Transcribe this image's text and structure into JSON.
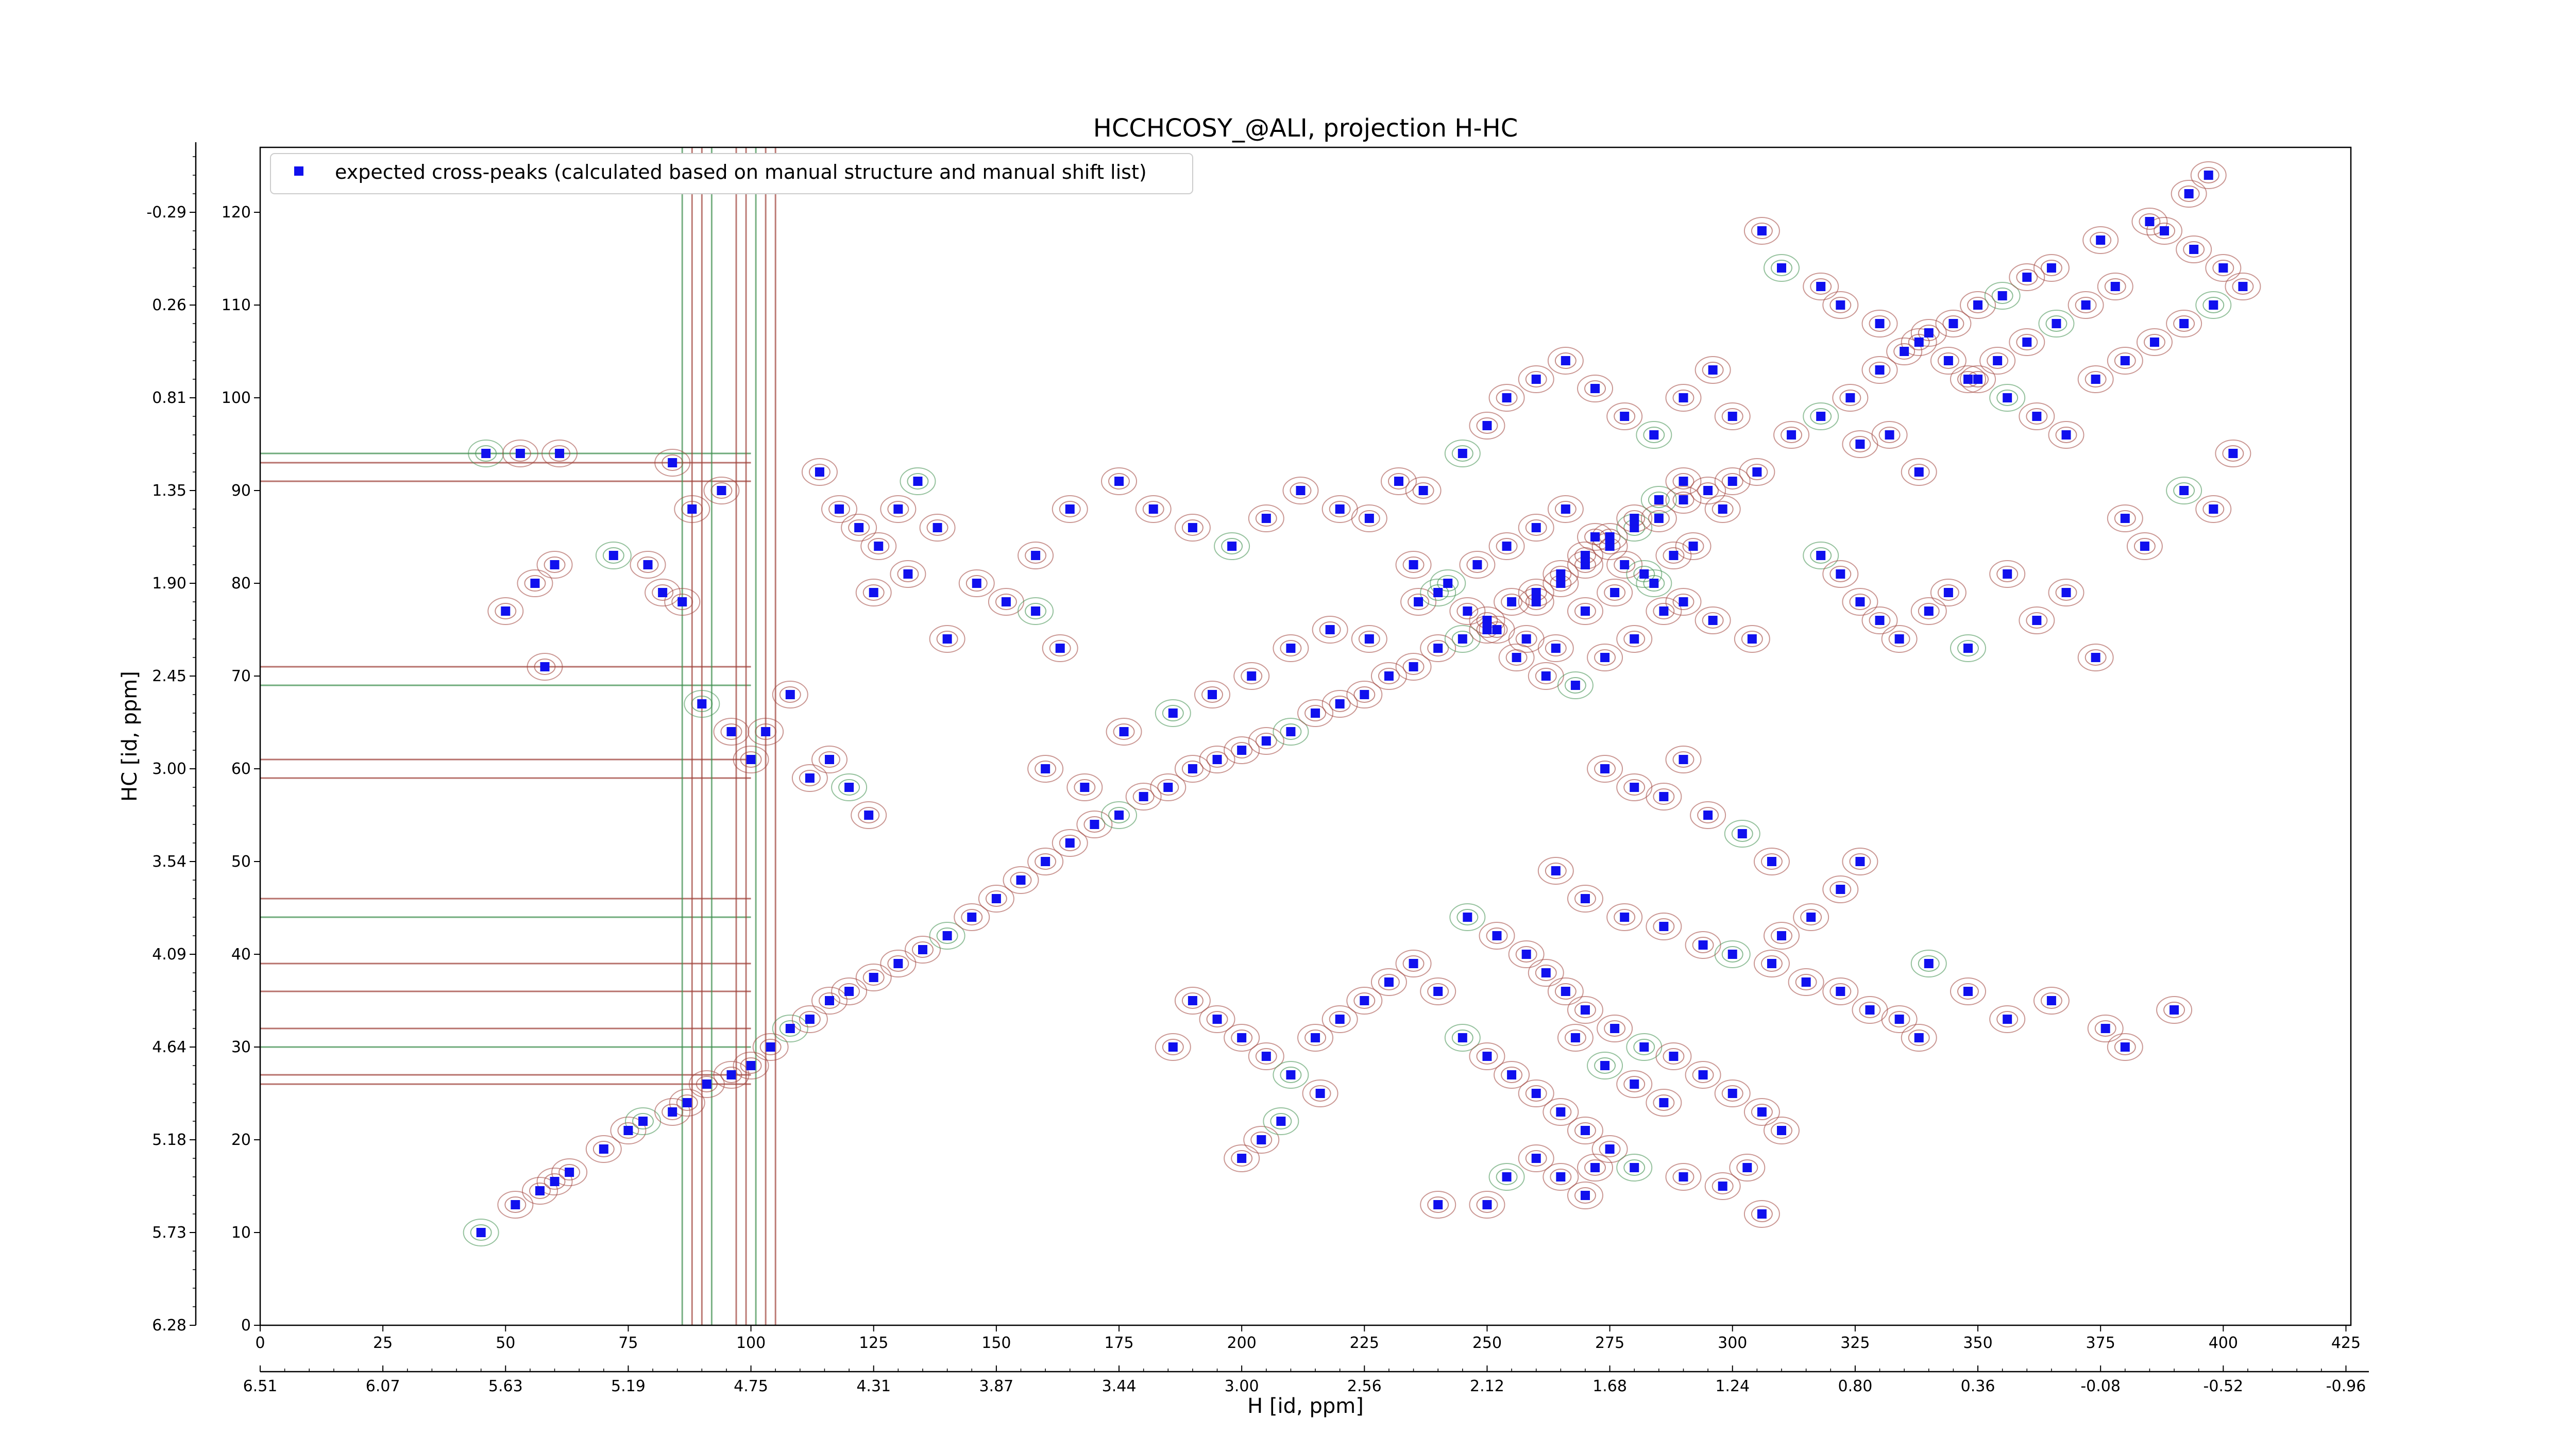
{
  "chart_data": {
    "type": "scatter",
    "title": "HCCHCOSY_@ALI, projection H-HC",
    "xlabel": "H [id, ppm]",
    "ylabel": "HC [id, ppm]",
    "x_index_range": [
      0,
      426
    ],
    "y_index_range": [
      0,
      127
    ],
    "x_index_ticks": [
      "0",
      "25",
      "50",
      "75",
      "100",
      "125",
      "150",
      "175",
      "200",
      "225",
      "250",
      "275",
      "300",
      "325",
      "350",
      "375",
      "400",
      "425"
    ],
    "x_ppm_ticks": [
      "6.51",
      "6.07",
      "5.63",
      "5.19",
      "4.75",
      "4.31",
      "3.87",
      "3.44",
      "3.00",
      "2.56",
      "2.12",
      "1.68",
      "1.24",
      "0.80",
      "0.36",
      "-0.08",
      "-0.52",
      "-0.96"
    ],
    "y_index_ticks": [
      "0",
      "10",
      "20",
      "30",
      "40",
      "50",
      "60",
      "70",
      "80",
      "90",
      "100",
      "110",
      "120"
    ],
    "y_ppm_ticks": [
      "6.28",
      "5.73",
      "5.18",
      "4.64",
      "4.09",
      "3.54",
      "3.00",
      "2.45",
      "1.90",
      "1.35",
      "0.81",
      "0.26",
      "-0.29"
    ],
    "grid": false,
    "legend_position": "top-left",
    "marker_color": "#1010ee",
    "contour_colors": [
      "#a0443c",
      "#3f8f4f"
    ],
    "series": [
      {
        "name": "expected cross-peaks (calculated based on manual structure and manual shift list)",
        "points": [
          [
            45,
            10
          ],
          [
            52,
            13
          ],
          [
            57,
            14.5
          ],
          [
            60,
            15.5
          ],
          [
            63,
            16.5
          ],
          [
            70,
            19
          ],
          [
            75,
            21
          ],
          [
            78,
            22
          ],
          [
            84,
            23
          ],
          [
            87,
            24
          ],
          [
            91,
            26
          ],
          [
            96,
            27
          ],
          [
            100,
            28
          ],
          [
            104,
            30
          ],
          [
            108,
            32
          ],
          [
            112,
            33
          ],
          [
            116,
            35
          ],
          [
            120,
            36
          ],
          [
            125,
            37.5
          ],
          [
            130,
            39
          ],
          [
            135,
            40.5
          ],
          [
            140,
            42
          ],
          [
            145,
            44
          ],
          [
            150,
            46
          ],
          [
            155,
            48
          ],
          [
            160,
            50
          ],
          [
            165,
            52
          ],
          [
            170,
            54
          ],
          [
            175,
            55
          ],
          [
            180,
            57
          ],
          [
            185,
            58
          ],
          [
            190,
            60
          ],
          [
            195,
            61
          ],
          [
            200,
            62
          ],
          [
            205,
            63
          ],
          [
            210,
            64
          ],
          [
            215,
            66
          ],
          [
            220,
            67
          ],
          [
            225,
            68
          ],
          [
            230,
            70
          ],
          [
            235,
            71
          ],
          [
            240,
            73
          ],
          [
            245,
            74
          ],
          [
            250,
            76
          ],
          [
            255,
            78
          ],
          [
            260,
            79
          ],
          [
            265,
            81
          ],
          [
            270,
            83
          ],
          [
            275,
            84
          ],
          [
            280,
            86
          ],
          [
            285,
            87
          ],
          [
            290,
            89
          ],
          [
            295,
            90
          ],
          [
            300,
            91
          ],
          [
            305,
            92
          ],
          [
            312,
            96
          ],
          [
            318,
            98
          ],
          [
            324,
            100
          ],
          [
            330,
            103
          ],
          [
            335,
            105
          ],
          [
            340,
            107
          ],
          [
            345,
            108
          ],
          [
            350,
            110
          ],
          [
            355,
            111
          ],
          [
            360,
            113
          ],
          [
            365,
            114
          ],
          [
            375,
            117
          ],
          [
            385,
            119
          ],
          [
            393,
            122
          ],
          [
            397,
            124
          ],
          [
            46,
            94
          ],
          [
            53,
            94
          ],
          [
            61,
            94
          ],
          [
            58,
            71
          ],
          [
            50,
            77
          ],
          [
            56,
            80
          ],
          [
            60,
            82
          ],
          [
            72,
            83
          ],
          [
            79,
            82
          ],
          [
            82,
            79
          ],
          [
            86,
            78
          ],
          [
            84,
            93
          ],
          [
            88,
            88
          ],
          [
            94,
            90
          ],
          [
            90,
            67
          ],
          [
            96,
            64
          ],
          [
            100,
            61
          ],
          [
            103,
            64
          ],
          [
            108,
            68
          ],
          [
            112,
            59
          ],
          [
            116,
            61
          ],
          [
            120,
            58
          ],
          [
            124,
            55
          ],
          [
            114,
            92
          ],
          [
            118,
            88
          ],
          [
            122,
            86
          ],
          [
            126,
            84
          ],
          [
            130,
            88
          ],
          [
            134,
            91
          ],
          [
            138,
            86
          ],
          [
            125,
            79
          ],
          [
            132,
            81
          ],
          [
            140,
            74
          ],
          [
            146,
            80
          ],
          [
            152,
            78
          ],
          [
            158,
            77
          ],
          [
            163,
            73
          ],
          [
            158,
            83
          ],
          [
            165,
            88
          ],
          [
            175,
            91
          ],
          [
            182,
            88
          ],
          [
            190,
            86
          ],
          [
            198,
            84
          ],
          [
            205,
            87
          ],
          [
            212,
            90
          ],
          [
            220,
            88
          ],
          [
            226,
            87
          ],
          [
            232,
            91
          ],
          [
            237,
            90
          ],
          [
            245,
            94
          ],
          [
            250,
            97
          ],
          [
            254,
            100
          ],
          [
            260,
            102
          ],
          [
            266,
            104
          ],
          [
            272,
            101
          ],
          [
            278,
            98
          ],
          [
            284,
            96
          ],
          [
            290,
            100
          ],
          [
            296,
            103
          ],
          [
            300,
            98
          ],
          [
            160,
            60
          ],
          [
            168,
            58
          ],
          [
            176,
            64
          ],
          [
            186,
            66
          ],
          [
            194,
            68
          ],
          [
            202,
            70
          ],
          [
            210,
            73
          ],
          [
            218,
            75
          ],
          [
            226,
            74
          ],
          [
            236,
            78
          ],
          [
            242,
            80
          ],
          [
            248,
            82
          ],
          [
            254,
            84
          ],
          [
            260,
            86
          ],
          [
            266,
            88
          ],
          [
            272,
            85
          ],
          [
            278,
            82
          ],
          [
            284,
            80
          ],
          [
            290,
            78
          ],
          [
            296,
            76
          ],
          [
            304,
            74
          ],
          [
            250,
            75
          ],
          [
            256,
            72
          ],
          [
            262,
            70
          ],
          [
            268,
            69
          ],
          [
            274,
            72
          ],
          [
            280,
            74
          ],
          [
            286,
            77
          ],
          [
            292,
            84
          ],
          [
            298,
            88
          ],
          [
            235,
            82
          ],
          [
            240,
            79
          ],
          [
            246,
            77
          ],
          [
            252,
            75
          ],
          [
            258,
            74
          ],
          [
            264,
            73
          ],
          [
            270,
            77
          ],
          [
            276,
            79
          ],
          [
            282,
            81
          ],
          [
            288,
            83
          ],
          [
            260,
            78
          ],
          [
            265,
            80
          ],
          [
            270,
            82
          ],
          [
            275,
            85
          ],
          [
            280,
            87
          ],
          [
            285,
            89
          ],
          [
            290,
            91
          ],
          [
            274,
            60
          ],
          [
            280,
            58
          ],
          [
            286,
            57
          ],
          [
            290,
            61
          ],
          [
            295,
            55
          ],
          [
            302,
            53
          ],
          [
            308,
            50
          ],
          [
            264,
            49
          ],
          [
            270,
            46
          ],
          [
            278,
            44
          ],
          [
            286,
            43
          ],
          [
            294,
            41
          ],
          [
            300,
            40
          ],
          [
            308,
            39
          ],
          [
            315,
            37
          ],
          [
            322,
            36
          ],
          [
            328,
            34
          ],
          [
            334,
            33
          ],
          [
            338,
            31
          ],
          [
            246,
            44
          ],
          [
            252,
            42
          ],
          [
            258,
            40
          ],
          [
            262,
            38
          ],
          [
            266,
            36
          ],
          [
            270,
            34
          ],
          [
            276,
            32
          ],
          [
            282,
            30
          ],
          [
            288,
            29
          ],
          [
            294,
            27
          ],
          [
            300,
            25
          ],
          [
            306,
            23
          ],
          [
            310,
            21
          ],
          [
            268,
            31
          ],
          [
            274,
            28
          ],
          [
            280,
            26
          ],
          [
            286,
            24
          ],
          [
            190,
            35
          ],
          [
            195,
            33
          ],
          [
            200,
            31
          ],
          [
            205,
            29
          ],
          [
            210,
            27
          ],
          [
            215,
            31
          ],
          [
            220,
            33
          ],
          [
            225,
            35
          ],
          [
            230,
            37
          ],
          [
            235,
            39
          ],
          [
            240,
            36
          ],
          [
            245,
            31
          ],
          [
            250,
            29
          ],
          [
            255,
            27
          ],
          [
            260,
            25
          ],
          [
            265,
            23
          ],
          [
            270,
            21
          ],
          [
            275,
            19
          ],
          [
            280,
            17
          ],
          [
            290,
            16
          ],
          [
            298,
            15
          ],
          [
            303,
            17
          ],
          [
            306,
            12
          ],
          [
            240,
            13
          ],
          [
            250,
            13
          ],
          [
            254,
            16
          ],
          [
            260,
            18
          ],
          [
            265,
            16
          ],
          [
            270,
            14
          ],
          [
            272,
            17
          ],
          [
            200,
            18
          ],
          [
            204,
            20
          ],
          [
            208,
            22
          ],
          [
            186,
            30
          ],
          [
            216,
            25
          ],
          [
            326,
            50
          ],
          [
            322,
            47
          ],
          [
            316,
            44
          ],
          [
            310,
            42
          ],
          [
            340,
            39
          ],
          [
            348,
            36
          ],
          [
            356,
            33
          ],
          [
            365,
            35
          ],
          [
            376,
            32
          ],
          [
            380,
            30
          ],
          [
            390,
            34
          ],
          [
            318,
            83
          ],
          [
            322,
            81
          ],
          [
            326,
            78
          ],
          [
            330,
            76
          ],
          [
            334,
            74
          ],
          [
            340,
            77
          ],
          [
            344,
            79
          ],
          [
            348,
            73
          ],
          [
            356,
            81
          ],
          [
            362,
            76
          ],
          [
            368,
            79
          ],
          [
            374,
            72
          ],
          [
            380,
            87
          ],
          [
            384,
            84
          ],
          [
            392,
            90
          ],
          [
            398,
            88
          ],
          [
            402,
            94
          ],
          [
            338,
            92
          ],
          [
            332,
            96
          ],
          [
            326,
            95
          ],
          [
            306,
            118
          ],
          [
            310,
            114
          ],
          [
            318,
            112
          ],
          [
            322,
            110
          ],
          [
            330,
            108
          ],
          [
            338,
            106
          ],
          [
            344,
            104
          ],
          [
            350,
            102
          ],
          [
            356,
            100
          ],
          [
            362,
            98
          ],
          [
            368,
            96
          ],
          [
            374,
            102
          ],
          [
            380,
            104
          ],
          [
            386,
            106
          ],
          [
            392,
            108
          ],
          [
            398,
            110
          ],
          [
            404,
            112
          ],
          [
            388,
            118
          ],
          [
            394,
            116
          ],
          [
            400,
            114
          ],
          [
            378,
            112
          ],
          [
            372,
            110
          ],
          [
            366,
            108
          ],
          [
            360,
            106
          ],
          [
            354,
            104
          ],
          [
            348,
            102
          ]
        ]
      }
    ]
  }
}
